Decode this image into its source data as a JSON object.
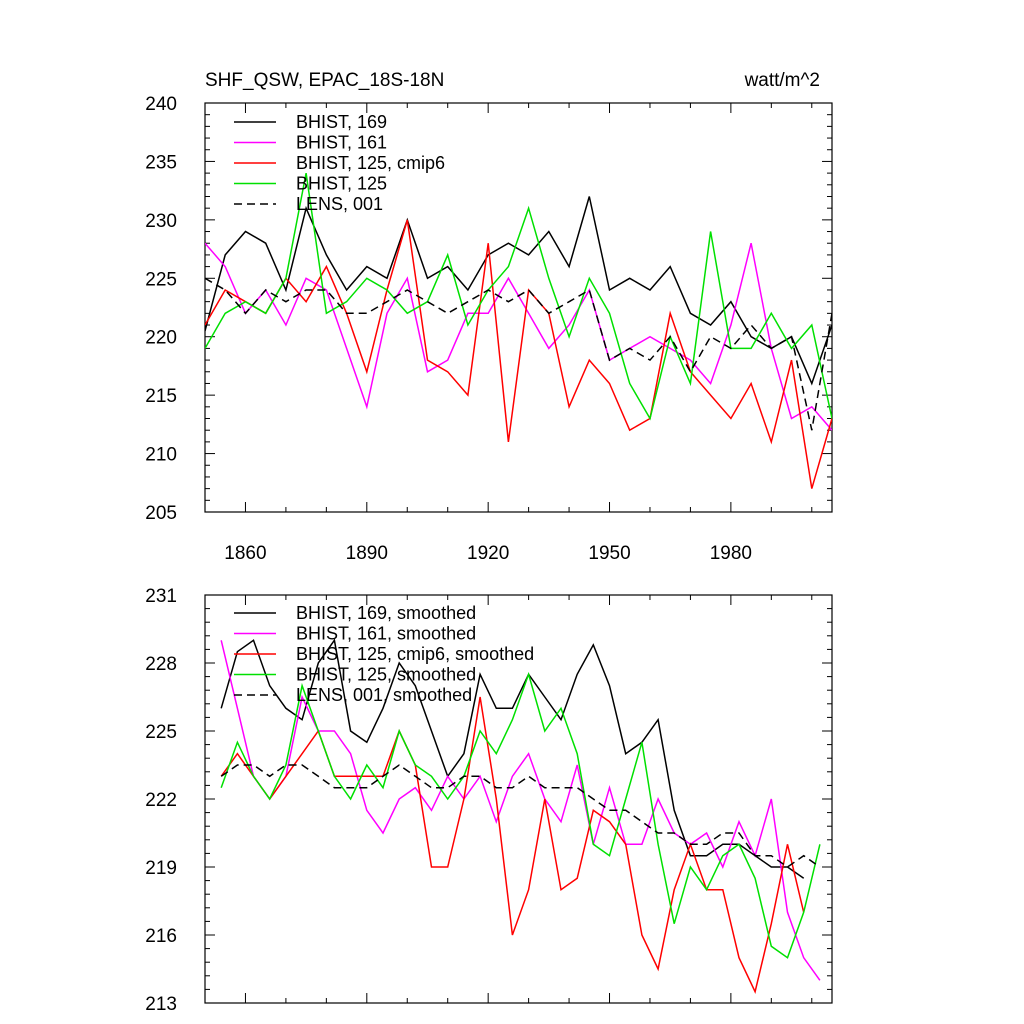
{
  "figure": {
    "title_left": "SHF_QSW, EPAC_18S-18N",
    "title_right": "watt/m^2"
  },
  "chart_data": [
    {
      "type": "line",
      "panel": "top",
      "title": "SHF_QSW, EPAC_18S-18N",
      "units": "watt/m^2",
      "xlim": [
        1850,
        2005
      ],
      "ylim": [
        205,
        240
      ],
      "x_ticks": [
        1860,
        1890,
        1920,
        1950,
        1980
      ],
      "x_tick_labels": [
        "1860",
        "1890",
        "1920",
        "1950",
        "1980"
      ],
      "y_ticks": [
        205,
        210,
        215,
        220,
        225,
        230,
        235,
        240
      ],
      "y_tick_labels": [
        "205",
        "210",
        "215",
        "220",
        "225",
        "230",
        "235",
        "240"
      ],
      "legend_position": "top-left",
      "series": [
        {
          "name": "BHIST, 169",
          "color": "#000000",
          "dash": "solid",
          "x": [
            1850,
            1855,
            1860,
            1865,
            1870,
            1875,
            1880,
            1885,
            1890,
            1895,
            1900,
            1905,
            1910,
            1915,
            1920,
            1925,
            1930,
            1935,
            1940,
            1945,
            1950,
            1955,
            1960,
            1965,
            1970,
            1975,
            1980,
            1985,
            1990,
            1995,
            2000,
            2005
          ],
          "values": [
            220.5,
            227,
            229,
            228,
            224,
            231,
            227,
            224,
            226,
            225,
            230,
            225,
            226,
            224,
            227,
            228,
            227,
            229,
            226,
            232,
            224,
            225,
            224,
            226,
            222,
            221,
            223,
            220,
            219,
            220,
            216,
            221
          ]
        },
        {
          "name": "BHIST, 161",
          "color": "#ff00ff",
          "dash": "solid",
          "x": [
            1850,
            1855,
            1860,
            1865,
            1870,
            1875,
            1880,
            1885,
            1890,
            1895,
            1900,
            1905,
            1910,
            1915,
            1920,
            1925,
            1930,
            1935,
            1940,
            1945,
            1950,
            1955,
            1960,
            1965,
            1970,
            1975,
            1980,
            1985,
            1990,
            1995,
            2000,
            2005
          ],
          "values": [
            228,
            226,
            222,
            224,
            221,
            225,
            224,
            219,
            214,
            222,
            225,
            217,
            218,
            222,
            222,
            225,
            222,
            219,
            221,
            224,
            218,
            219,
            220,
            219,
            218,
            216,
            221,
            228,
            219,
            213,
            214,
            212
          ]
        },
        {
          "name": "BHIST, 125, cmip6",
          "color": "#ff0000",
          "dash": "solid",
          "x": [
            1850,
            1855,
            1860,
            1865,
            1870,
            1875,
            1880,
            1885,
            1890,
            1895,
            1900,
            1905,
            1910,
            1915,
            1920,
            1925,
            1930,
            1935,
            1940,
            1945,
            1950,
            1955,
            1960,
            1965,
            1970,
            1975,
            1980,
            1985,
            1990,
            1995,
            2000,
            2005
          ],
          "values": [
            221,
            224,
            223,
            222,
            225,
            223,
            226,
            222,
            217,
            224,
            230,
            218,
            217,
            215,
            228,
            211,
            224,
            222,
            214,
            218,
            216,
            212,
            213,
            222,
            217,
            215,
            213,
            216,
            211,
            218,
            207,
            213
          ]
        },
        {
          "name": "BHIST, 125",
          "color": "#00e000",
          "dash": "solid",
          "x": [
            1850,
            1855,
            1860,
            1865,
            1870,
            1875,
            1880,
            1885,
            1890,
            1895,
            1900,
            1905,
            1910,
            1915,
            1920,
            1925,
            1930,
            1935,
            1940,
            1945,
            1950,
            1955,
            1960,
            1965,
            1970,
            1975,
            1980,
            1985,
            1990,
            1995,
            2000,
            2005
          ],
          "values": [
            219,
            222,
            223,
            222,
            225,
            234,
            222,
            223,
            225,
            224,
            222,
            223,
            227,
            221,
            224,
            226,
            231,
            225,
            220,
            225,
            222,
            216,
            213,
            220,
            216,
            229,
            219,
            219,
            222,
            219,
            221,
            213
          ]
        },
        {
          "name": "LENS, 001",
          "color": "#000000",
          "dash": "dash",
          "x": [
            1850,
            1855,
            1860,
            1865,
            1870,
            1875,
            1880,
            1885,
            1890,
            1895,
            1900,
            1905,
            1910,
            1915,
            1920,
            1925,
            1930,
            1935,
            1940,
            1945,
            1950,
            1955,
            1960,
            1965,
            1970,
            1975,
            1980,
            1985,
            1990,
            1995,
            2000,
            2005
          ],
          "values": [
            225,
            224,
            222,
            224,
            223,
            224,
            224,
            222,
            222,
            223,
            224,
            223,
            222,
            223,
            224,
            223,
            224,
            222,
            223,
            224,
            218,
            219,
            218,
            220,
            217,
            220,
            219,
            221,
            219,
            220,
            212,
            222
          ]
        }
      ]
    },
    {
      "type": "line",
      "panel": "bottom",
      "title": "",
      "xlim": [
        1850,
        2005
      ],
      "ylim": [
        213,
        231
      ],
      "y_ticks": [
        213,
        216,
        219,
        222,
        225,
        228,
        231
      ],
      "y_tick_labels": [
        "213",
        "216",
        "219",
        "222",
        "225",
        "228",
        "231"
      ],
      "legend_position": "top-left",
      "series": [
        {
          "name": "BHIST, 169, smoothed",
          "color": "#000000",
          "dash": "solid",
          "x": [
            1854,
            1858,
            1862,
            1866,
            1870,
            1874,
            1878,
            1882,
            1886,
            1890,
            1894,
            1898,
            1902,
            1906,
            1910,
            1914,
            1918,
            1922,
            1926,
            1930,
            1934,
            1938,
            1942,
            1946,
            1950,
            1954,
            1958,
            1962,
            1966,
            1970,
            1974,
            1978,
            1982,
            1986,
            1990,
            1994,
            1998
          ],
          "values": [
            226,
            228.5,
            229,
            227,
            226,
            225.5,
            228,
            229,
            225,
            224.5,
            226,
            228,
            227,
            225,
            223,
            224,
            227.5,
            226,
            226,
            227.5,
            226.5,
            225.5,
            227.5,
            228.8,
            227,
            224,
            224.5,
            225.5,
            221.5,
            219.5,
            219.5,
            220,
            220,
            219.5,
            219,
            219,
            218.5
          ]
        },
        {
          "name": "BHIST, 161, smoothed",
          "color": "#ff00ff",
          "dash": "solid",
          "x": [
            1854,
            1858,
            1862,
            1866,
            1870,
            1874,
            1878,
            1882,
            1886,
            1890,
            1894,
            1898,
            1902,
            1906,
            1910,
            1914,
            1918,
            1922,
            1926,
            1930,
            1934,
            1938,
            1942,
            1946,
            1950,
            1954,
            1958,
            1962,
            1966,
            1970,
            1974,
            1978,
            1982,
            1986,
            1990,
            1994,
            1998,
            2002
          ],
          "values": [
            229,
            226,
            223,
            222,
            223,
            226.5,
            225,
            225,
            224,
            221.5,
            220.5,
            222,
            222.5,
            221.5,
            223,
            222,
            223,
            221,
            223,
            224,
            222,
            221,
            223.5,
            220,
            222.5,
            220,
            220,
            222,
            220.5,
            220,
            220.5,
            219,
            221,
            219.5,
            222,
            217,
            215,
            214
          ]
        },
        {
          "name": "BHIST, 125, cmip6, smoothed",
          "color": "#ff0000",
          "dash": "solid",
          "x": [
            1854,
            1858,
            1862,
            1866,
            1870,
            1874,
            1878,
            1882,
            1886,
            1890,
            1894,
            1898,
            1902,
            1906,
            1910,
            1914,
            1918,
            1922,
            1926,
            1930,
            1934,
            1938,
            1942,
            1946,
            1950,
            1954,
            1958,
            1962,
            1966,
            1970,
            1974,
            1978,
            1982,
            1986,
            1990,
            1994,
            1998,
            2002
          ],
          "values": [
            223,
            224,
            223,
            222,
            223,
            224,
            225,
            223,
            223,
            223,
            223,
            225,
            223.5,
            219,
            219,
            222,
            226.5,
            222,
            216,
            218,
            222,
            218,
            218.5,
            221.5,
            221,
            220,
            216,
            214.5,
            218,
            220,
            218,
            218,
            215,
            213.5,
            216.5,
            220,
            217,
            null
          ]
        },
        {
          "name": "BHIST, 125, smoothed",
          "color": "#00e000",
          "dash": "solid",
          "x": [
            1854,
            1858,
            1862,
            1866,
            1870,
            1874,
            1878,
            1882,
            1886,
            1890,
            1894,
            1898,
            1902,
            1906,
            1910,
            1914,
            1918,
            1922,
            1926,
            1930,
            1934,
            1938,
            1942,
            1946,
            1950,
            1954,
            1958,
            1962,
            1966,
            1970,
            1974,
            1978,
            1982,
            1986,
            1990,
            1994,
            1998,
            2002
          ],
          "values": [
            222.5,
            224.5,
            223,
            222,
            223.5,
            227,
            225,
            223,
            222,
            223.5,
            222.5,
            225,
            223.5,
            223,
            222,
            223,
            225,
            224,
            225.5,
            227.5,
            225,
            226,
            224,
            220,
            219.5,
            222,
            224.5,
            220,
            216.5,
            219,
            218,
            219.5,
            220,
            218.5,
            215.5,
            215,
            217,
            220
          ]
        },
        {
          "name": "LENS, 001, smoothed",
          "color": "#000000",
          "dash": "dash",
          "x": [
            1854,
            1858,
            1862,
            1866,
            1870,
            1874,
            1878,
            1882,
            1886,
            1890,
            1894,
            1898,
            1902,
            1906,
            1910,
            1914,
            1918,
            1922,
            1926,
            1930,
            1934,
            1938,
            1942,
            1946,
            1950,
            1954,
            1958,
            1962,
            1966,
            1970,
            1974,
            1978,
            1982,
            1986,
            1990,
            1994,
            1998,
            2002
          ],
          "values": [
            223,
            223.5,
            223.5,
            223,
            223.5,
            223.5,
            223,
            222.5,
            222.5,
            222.5,
            223,
            223.5,
            223,
            222.5,
            222.5,
            223,
            223,
            222.5,
            222.5,
            223,
            222.5,
            222.5,
            222.5,
            222,
            221.5,
            221.5,
            221,
            220.5,
            220.5,
            220,
            220,
            220.5,
            220.5,
            219.5,
            219.5,
            219,
            219.5,
            219
          ]
        }
      ]
    }
  ]
}
